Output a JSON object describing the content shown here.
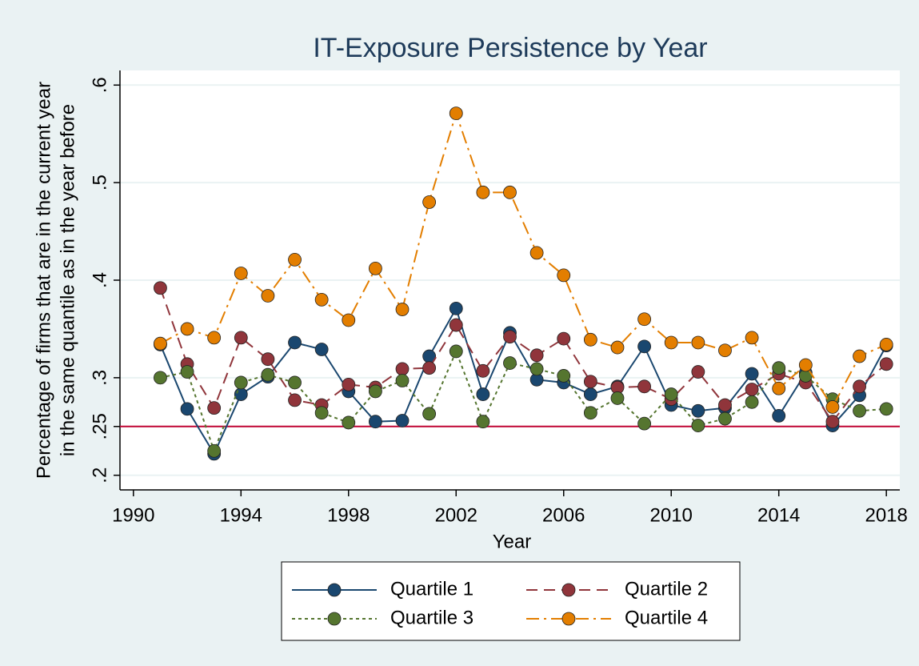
{
  "chart_data": {
    "type": "line",
    "title": "IT-Exposure Persistence by Year",
    "xlabel": "Year",
    "ylabel": [
      "Percentage of firms that are in the current year",
      "in the same quantile as in the year before"
    ],
    "x": [
      1991,
      1992,
      1993,
      1994,
      1995,
      1996,
      1997,
      1998,
      1999,
      2000,
      2001,
      2002,
      2003,
      2004,
      2005,
      2006,
      2007,
      2008,
      2009,
      2010,
      2011,
      2012,
      2013,
      2014,
      2015,
      2016,
      2017,
      2018
    ],
    "series": [
      {
        "name": "Quartile 1",
        "color": "#1a476f",
        "dash": "solid",
        "values": [
          0.334,
          0.268,
          0.222,
          0.283,
          0.301,
          0.336,
          0.329,
          0.286,
          0.255,
          0.256,
          0.322,
          0.371,
          0.283,
          0.346,
          0.298,
          0.295,
          0.283,
          0.291,
          0.332,
          0.272,
          0.266,
          0.269,
          0.304,
          0.261,
          0.305,
          0.251,
          0.282,
          0.333
        ]
      },
      {
        "name": "Quartile 2",
        "color": "#90353b",
        "dash": "dash",
        "values": [
          0.392,
          0.314,
          0.269,
          0.341,
          0.319,
          0.277,
          0.272,
          0.293,
          0.29,
          0.309,
          0.31,
          0.354,
          0.307,
          0.342,
          0.323,
          0.34,
          0.296,
          0.29,
          0.291,
          0.278,
          0.306,
          0.272,
          0.288,
          0.304,
          0.295,
          0.255,
          0.291,
          0.314
        ]
      },
      {
        "name": "Quartile 3",
        "color": "#55752f",
        "dash": "shortdash",
        "values": [
          0.3,
          0.306,
          0.225,
          0.295,
          0.303,
          0.295,
          0.264,
          0.254,
          0.286,
          0.297,
          0.263,
          0.327,
          0.255,
          0.315,
          0.309,
          0.302,
          0.264,
          0.279,
          0.253,
          0.283,
          0.251,
          0.258,
          0.275,
          0.31,
          0.302,
          0.278,
          0.266,
          0.268
        ]
      },
      {
        "name": "Quartile 4",
        "color": "#e37e00",
        "dash": "longdash_dot",
        "values": [
          0.335,
          0.35,
          0.341,
          0.407,
          0.384,
          0.421,
          0.38,
          0.359,
          0.412,
          0.37,
          0.48,
          0.571,
          0.49,
          0.49,
          0.428,
          0.405,
          0.339,
          0.331,
          0.36,
          0.336,
          0.336,
          0.328,
          0.341,
          0.289,
          0.313,
          0.27,
          0.322,
          0.334
        ]
      }
    ],
    "reference_line": {
      "value": 0.25,
      "color": "#c10534"
    },
    "xlim": [
      1989.5,
      2018.5
    ],
    "xticks": [
      1990,
      1994,
      1998,
      2002,
      2006,
      2010,
      2014,
      2018
    ],
    "ylim": [
      0.185,
      0.615
    ],
    "yticks": [
      {
        "value": 0.2,
        "label": ".2"
      },
      {
        "value": 0.25,
        "label": ".25"
      },
      {
        "value": 0.3,
        "label": ".3"
      },
      {
        "value": 0.4,
        "label": ".4"
      },
      {
        "value": 0.5,
        "label": ".5"
      },
      {
        "value": 0.6,
        "label": ".6"
      }
    ],
    "grid": true,
    "legend": "bottom"
  }
}
